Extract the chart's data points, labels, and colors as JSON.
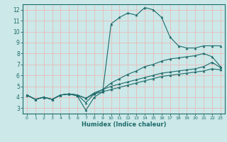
{
  "xlabel": "Humidex (Indice chaleur)",
  "xlim": [
    -0.5,
    23.5
  ],
  "ylim": [
    2.5,
    12.5
  ],
  "xticks": [
    0,
    1,
    2,
    3,
    4,
    5,
    6,
    7,
    8,
    9,
    10,
    11,
    12,
    13,
    14,
    15,
    16,
    17,
    18,
    19,
    20,
    21,
    22,
    23
  ],
  "yticks": [
    3,
    4,
    5,
    6,
    7,
    8,
    9,
    10,
    11,
    12
  ],
  "background_color": "#cce8e8",
  "grid_color": "#e8bbbb",
  "line_color": "#1e6b6b",
  "lines": [
    {
      "x": [
        0,
        1,
        2,
        3,
        4,
        5,
        6,
        7,
        8,
        9,
        10,
        11,
        12,
        13,
        14,
        15,
        16,
        17,
        18,
        19,
        20,
        21,
        22,
        23
      ],
      "y": [
        4.2,
        3.8,
        4.0,
        3.8,
        4.2,
        4.3,
        4.1,
        2.8,
        4.0,
        4.5,
        10.7,
        11.3,
        11.7,
        11.5,
        12.2,
        12.0,
        11.3,
        9.5,
        8.7,
        8.5,
        8.5,
        8.7,
        8.7,
        8.7
      ]
    },
    {
      "x": [
        0,
        1,
        2,
        3,
        4,
        5,
        6,
        7,
        8,
        9,
        10,
        11,
        12,
        13,
        14,
        15,
        16,
        17,
        18,
        19,
        20,
        21,
        22,
        23
      ],
      "y": [
        4.2,
        3.8,
        4.0,
        3.8,
        4.2,
        4.3,
        4.2,
        3.5,
        4.3,
        4.7,
        5.3,
        5.7,
        6.1,
        6.4,
        6.8,
        7.0,
        7.3,
        7.5,
        7.6,
        7.7,
        7.8,
        8.0,
        7.7,
        6.8
      ]
    },
    {
      "x": [
        0,
        1,
        2,
        3,
        4,
        5,
        6,
        7,
        8,
        9,
        10,
        11,
        12,
        13,
        14,
        15,
        16,
        17,
        18,
        19,
        20,
        21,
        22,
        23
      ],
      "y": [
        4.2,
        3.8,
        4.0,
        3.8,
        4.2,
        4.3,
        4.2,
        3.9,
        4.4,
        4.7,
        5.0,
        5.2,
        5.4,
        5.6,
        5.8,
        6.0,
        6.2,
        6.3,
        6.4,
        6.5,
        6.6,
        6.8,
        7.2,
        6.7
      ]
    },
    {
      "x": [
        0,
        1,
        2,
        3,
        4,
        5,
        6,
        7,
        8,
        9,
        10,
        11,
        12,
        13,
        14,
        15,
        16,
        17,
        18,
        19,
        20,
        21,
        22,
        23
      ],
      "y": [
        4.2,
        3.8,
        4.0,
        3.8,
        4.2,
        4.3,
        4.2,
        3.9,
        4.3,
        4.5,
        4.7,
        4.9,
        5.1,
        5.3,
        5.5,
        5.7,
        5.9,
        6.0,
        6.1,
        6.2,
        6.3,
        6.4,
        6.6,
        6.5
      ]
    }
  ]
}
